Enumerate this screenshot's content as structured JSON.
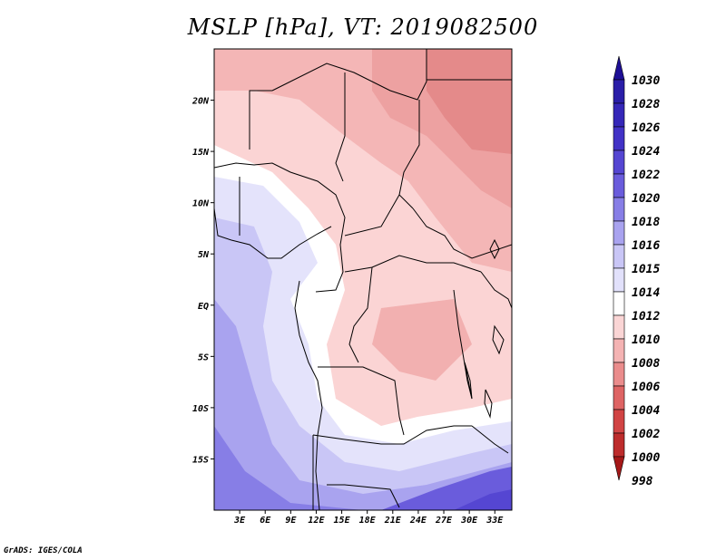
{
  "title": "MSLP [hPa], VT: 2019082500",
  "credit": "GrADS: IGES/COLA",
  "map": {
    "variable": "MSLP",
    "units": "hPa",
    "valid_time": "2019082500",
    "region": "Central and Southern-Central Africa",
    "lon_range": [
      0,
      35
    ],
    "lat_range": [
      -20,
      25
    ],
    "lon_ticks": [
      3,
      6,
      9,
      12,
      15,
      18,
      21,
      24,
      27,
      30,
      33
    ],
    "lon_tick_labels": [
      "3E",
      "6E",
      "9E",
      "12E",
      "15E",
      "18E",
      "21E",
      "24E",
      "27E",
      "30E",
      "33E"
    ],
    "lat_ticks": [
      20,
      15,
      10,
      5,
      0,
      -5,
      -10,
      -15
    ],
    "lat_tick_labels": [
      "20N",
      "15N",
      "10N",
      "5N",
      "EQ",
      "5S",
      "10S",
      "15S"
    ]
  },
  "legend": {
    "labels": [
      "1030",
      "1028",
      "1026",
      "1024",
      "1022",
      "1020",
      "1018",
      "1016",
      "1015",
      "1014",
      "1012",
      "1010",
      "1008",
      "1006",
      "1004",
      "1002",
      "1000",
      "998"
    ],
    "colors": [
      "#1e0f96",
      "#2a1ea8",
      "#3527b8",
      "#4232c6",
      "#5546d2",
      "#6a5cdc",
      "#877ee6",
      "#a9a3ef",
      "#c9c6f6",
      "#e2e1fb",
      "#ffffff",
      "#fad5d5",
      "#f4b3b3",
      "#ea8c8c",
      "#de6464",
      "#d14444",
      "#bd2c2c",
      "#a51818"
    ]
  }
}
